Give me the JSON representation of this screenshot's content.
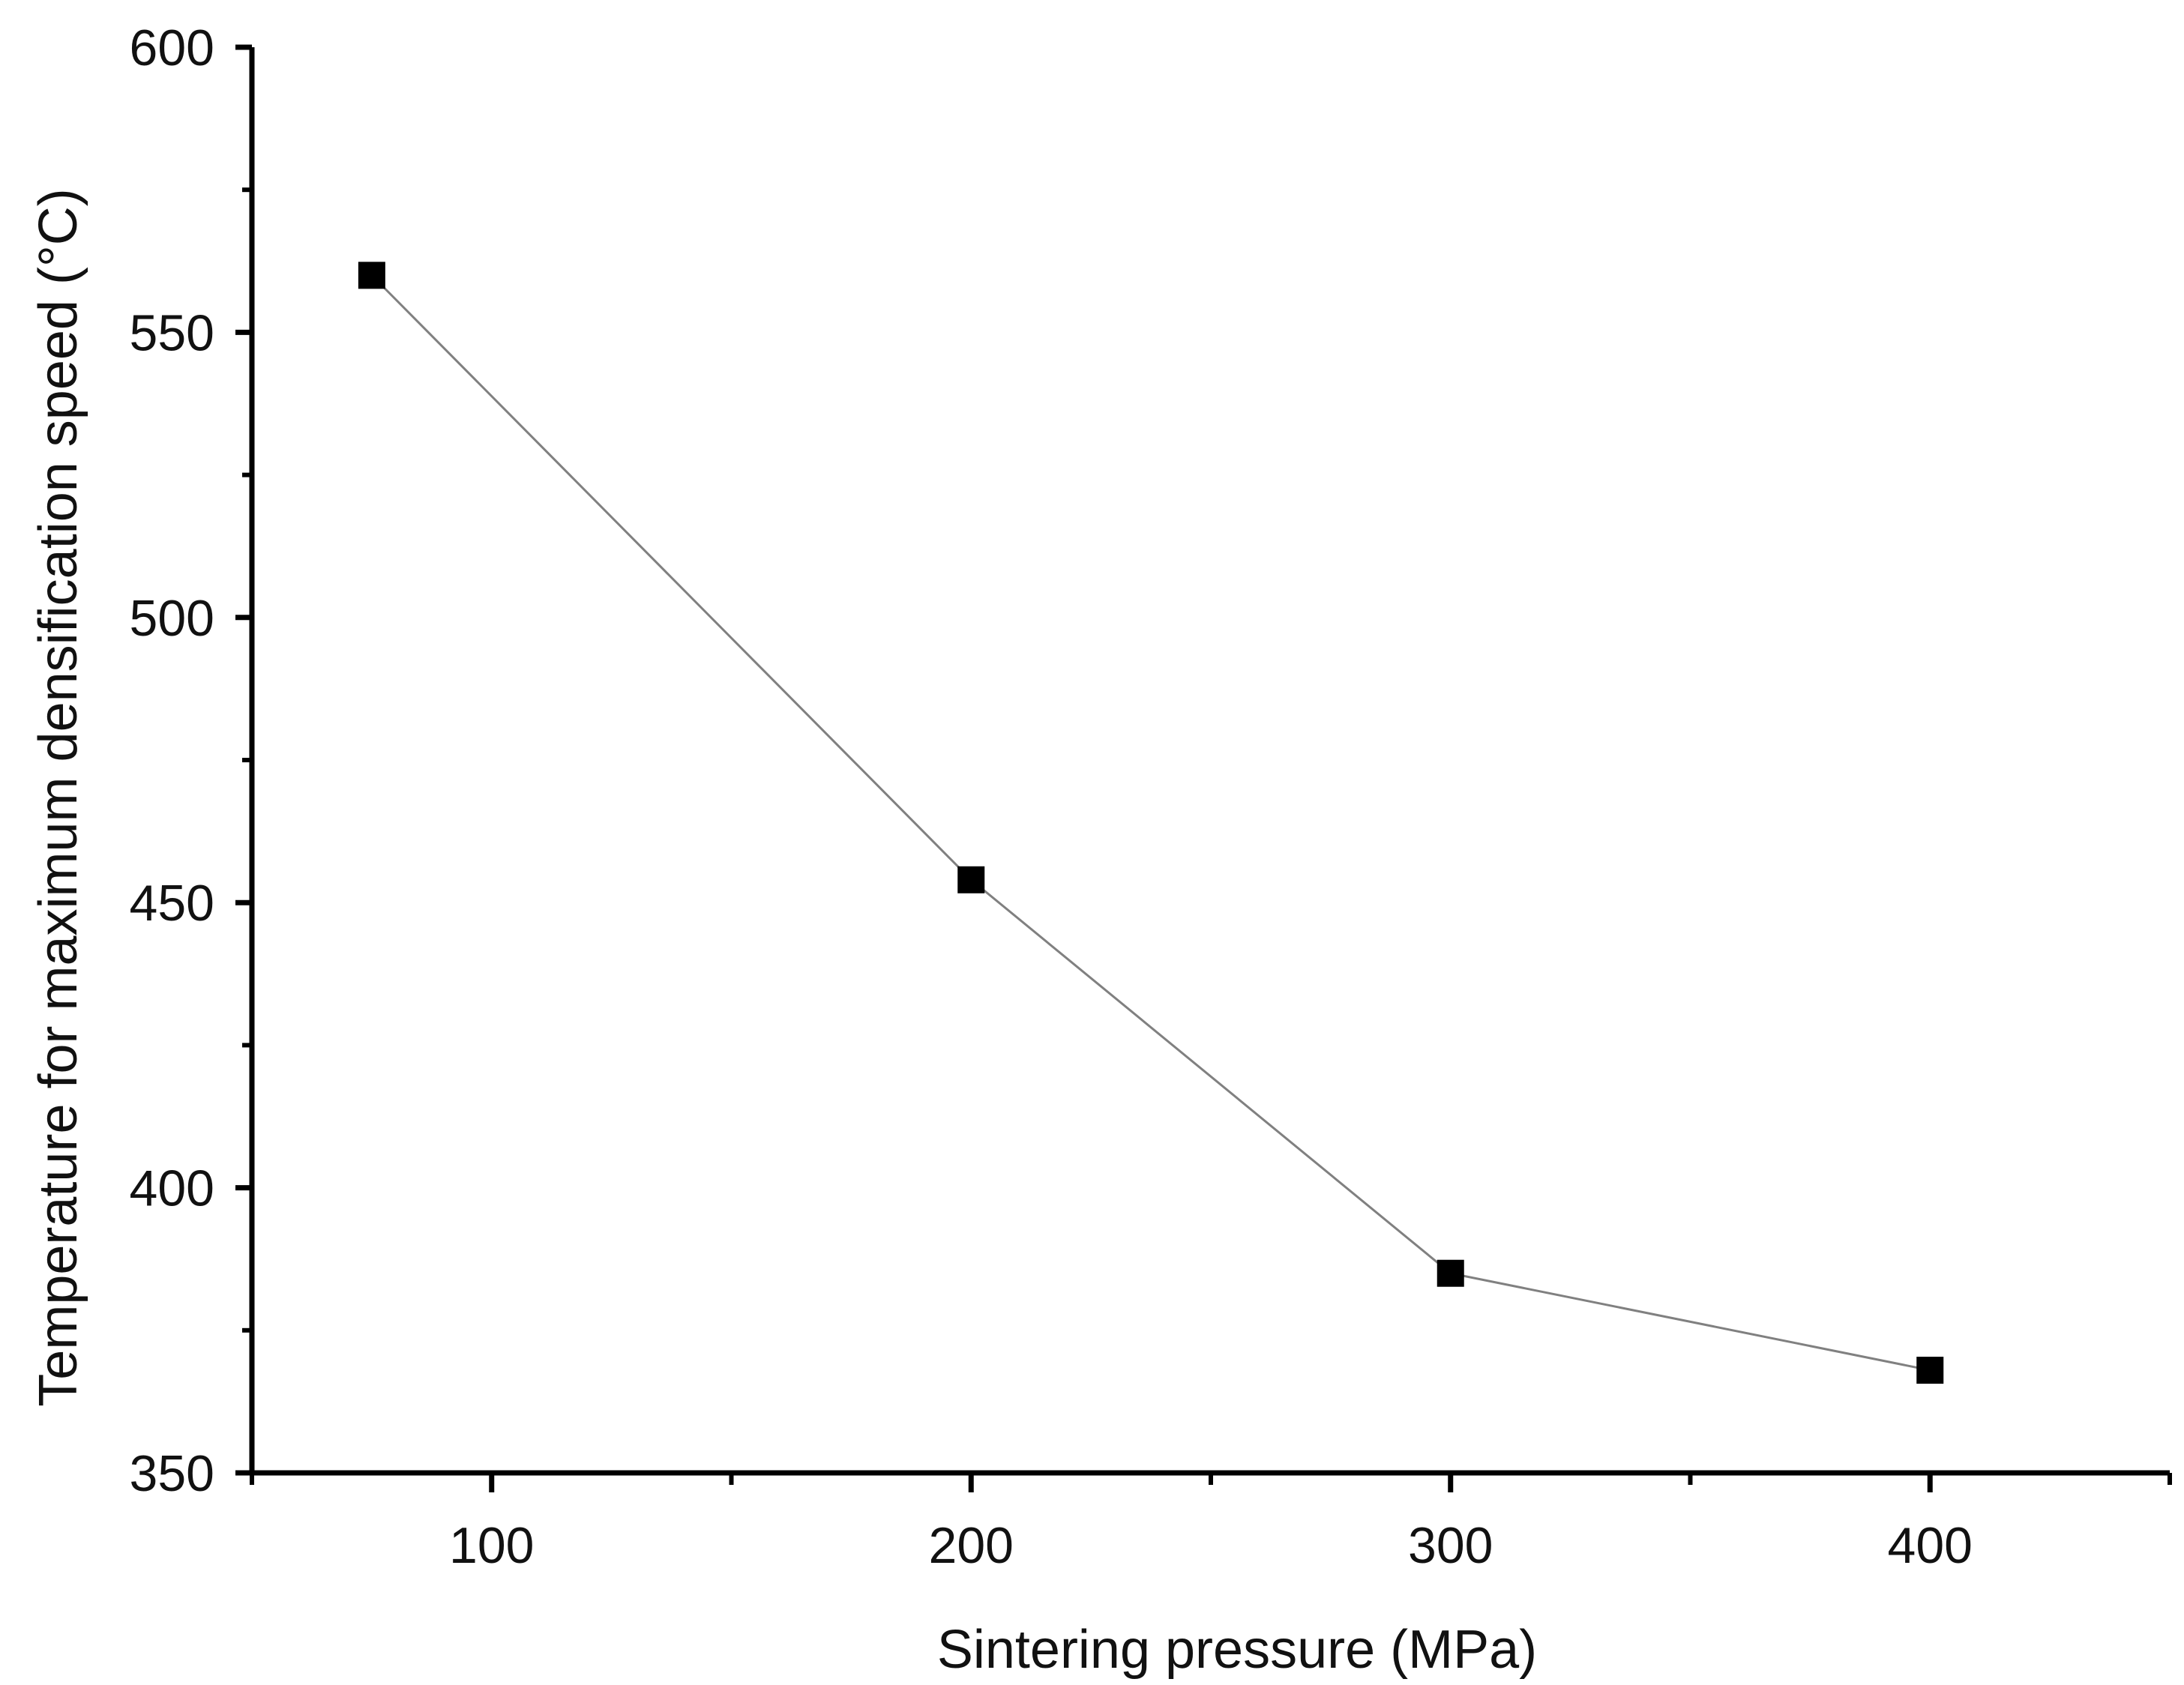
{
  "chart_data": {
    "type": "line",
    "title": "",
    "xlabel": "Sintering pressure (MPa)",
    "ylabel": "Temperature for maximum densification speed (°C)",
    "xlim": [
      50,
      450
    ],
    "ylim": [
      350,
      600
    ],
    "x_ticks": [
      100,
      200,
      300,
      400
    ],
    "x_minor_ticks": [
      50,
      150,
      250,
      350,
      450
    ],
    "y_ticks": [
      350,
      400,
      450,
      500,
      550,
      600
    ],
    "y_minor_ticks": [
      375,
      425,
      475,
      525,
      575
    ],
    "grid": false,
    "legend": "none",
    "series": [
      {
        "name": "Temperature for maximum densification speed",
        "marker": "square",
        "color": "#000000",
        "line_color": "#808080",
        "x": [
          75,
          200,
          300,
          400
        ],
        "y": [
          560,
          454,
          385,
          368
        ]
      }
    ]
  }
}
